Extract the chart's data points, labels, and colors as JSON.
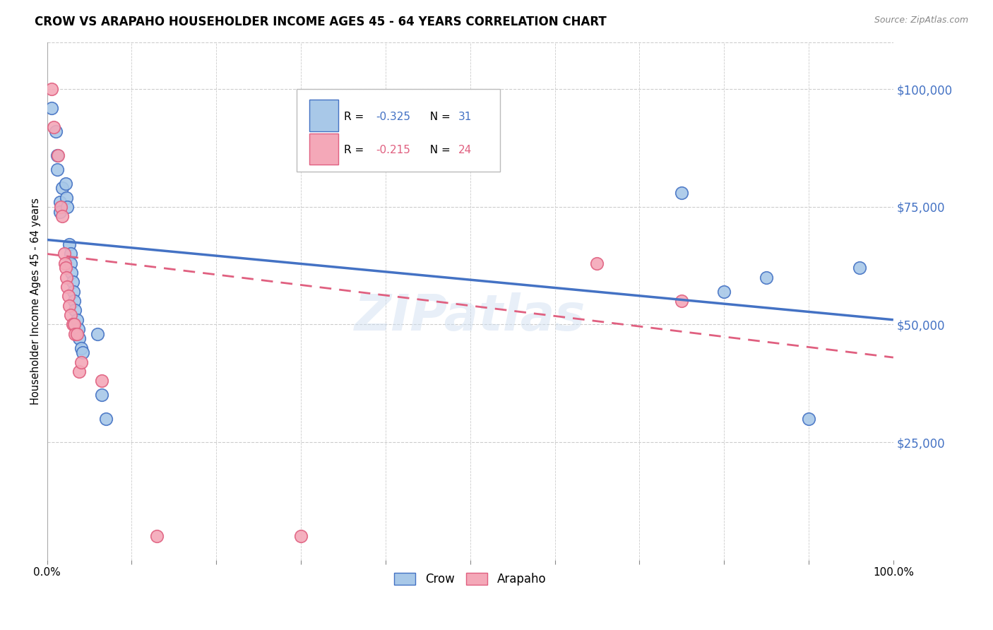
{
  "title": "CROW VS ARAPAHO HOUSEHOLDER INCOME AGES 45 - 64 YEARS CORRELATION CHART",
  "source": "Source: ZipAtlas.com",
  "ylabel": "Householder Income Ages 45 - 64 years",
  "y_tick_values": [
    25000,
    50000,
    75000,
    100000
  ],
  "y_right_labels": [
    "$25,000",
    "$50,000",
    "$75,000",
    "$100,000"
  ],
  "crow_color": "#a8c8e8",
  "arapaho_color": "#f4a8b8",
  "crow_edge_color": "#4472c4",
  "arapaho_edge_color": "#e06080",
  "crow_line_color": "#4472c4",
  "arapaho_line_color": "#e06080",
  "crow_scatter": [
    [
      0.005,
      96000
    ],
    [
      0.01,
      91000
    ],
    [
      0.012,
      86000
    ],
    [
      0.012,
      83000
    ],
    [
      0.015,
      76000
    ],
    [
      0.015,
      74000
    ],
    [
      0.018,
      79000
    ],
    [
      0.022,
      80000
    ],
    [
      0.023,
      77000
    ],
    [
      0.024,
      75000
    ],
    [
      0.026,
      67000
    ],
    [
      0.028,
      65000
    ],
    [
      0.028,
      63000
    ],
    [
      0.029,
      61000
    ],
    [
      0.03,
      59000
    ],
    [
      0.031,
      57000
    ],
    [
      0.032,
      55000
    ],
    [
      0.033,
      53000
    ],
    [
      0.035,
      51000
    ],
    [
      0.037,
      49000
    ],
    [
      0.038,
      47000
    ],
    [
      0.04,
      45000
    ],
    [
      0.042,
      44000
    ],
    [
      0.06,
      48000
    ],
    [
      0.065,
      35000
    ],
    [
      0.07,
      30000
    ],
    [
      0.75,
      78000
    ],
    [
      0.8,
      57000
    ],
    [
      0.85,
      60000
    ],
    [
      0.9,
      30000
    ],
    [
      0.96,
      62000
    ]
  ],
  "arapaho_scatter": [
    [
      0.005,
      100000
    ],
    [
      0.008,
      92000
    ],
    [
      0.013,
      86000
    ],
    [
      0.016,
      75000
    ],
    [
      0.018,
      73000
    ],
    [
      0.02,
      65000
    ],
    [
      0.021,
      63000
    ],
    [
      0.022,
      62000
    ],
    [
      0.023,
      60000
    ],
    [
      0.024,
      58000
    ],
    [
      0.025,
      56000
    ],
    [
      0.026,
      54000
    ],
    [
      0.028,
      52000
    ],
    [
      0.03,
      50000
    ],
    [
      0.032,
      50000
    ],
    [
      0.033,
      48000
    ],
    [
      0.035,
      48000
    ],
    [
      0.038,
      40000
    ],
    [
      0.04,
      42000
    ],
    [
      0.065,
      38000
    ],
    [
      0.13,
      5000
    ],
    [
      0.3,
      5000
    ],
    [
      0.65,
      63000
    ],
    [
      0.75,
      55000
    ]
  ],
  "crow_trendline_x": [
    0.0,
    1.0
  ],
  "crow_trendline_y": [
    68000,
    51000
  ],
  "arapaho_trendline_x": [
    0.0,
    1.0
  ],
  "arapaho_trendline_y": [
    65000,
    43000
  ],
  "xlim": [
    0.0,
    1.0
  ],
  "ylim": [
    0,
    110000
  ],
  "figsize": [
    14.06,
    8.92
  ],
  "dpi": 100
}
